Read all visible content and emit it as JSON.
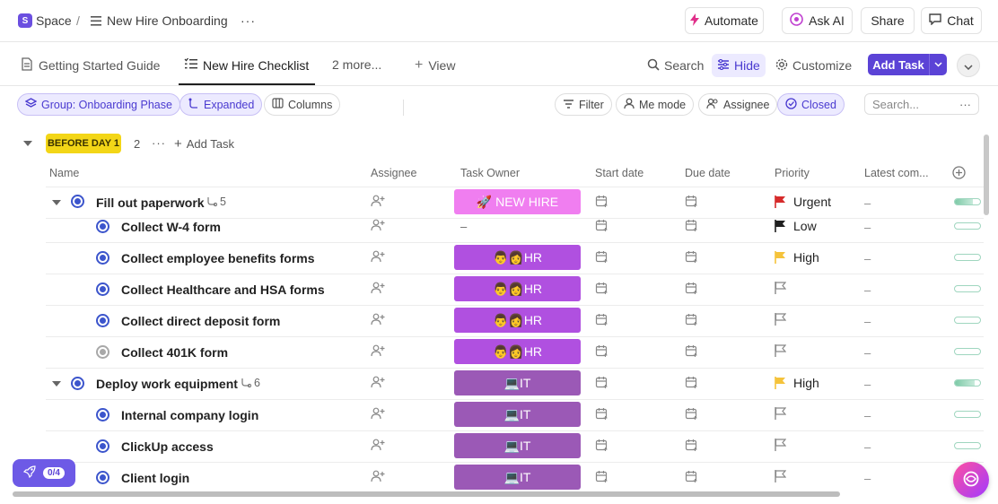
{
  "breadcrumb": {
    "space_badge": "S",
    "space": "Space",
    "separator": "/",
    "list": "New Hire Onboarding",
    "more": "···"
  },
  "topbar": {
    "automate": "Automate",
    "ask_ai": "Ask AI",
    "share": "Share",
    "chat": "Chat"
  },
  "tabs": [
    {
      "label": "Getting Started Guide"
    },
    {
      "label": "New Hire Checklist"
    },
    {
      "label": "2 more..."
    },
    {
      "label": "View"
    }
  ],
  "toolbar": {
    "search": "Search",
    "hide": "Hide",
    "customize": "Customize",
    "add_task": "Add Task"
  },
  "filters": {
    "group": "Group: Onboarding Phase",
    "expanded": "Expanded",
    "columns": "Columns",
    "filter": "Filter",
    "me_mode": "Me mode",
    "assignee": "Assignee",
    "closed": "Closed",
    "search_placeholder": "Search...",
    "search_more": "···"
  },
  "group": {
    "name": "BEFORE DAY 1",
    "count": "2",
    "more": "···",
    "add_task": "Add Task"
  },
  "columns": {
    "name": "Name",
    "assignee": "Assignee",
    "task_owner": "Task Owner",
    "start_date": "Start date",
    "due_date": "Due date",
    "priority": "Priority",
    "latest_comment": "Latest com..."
  },
  "tasks": [
    {
      "name": "Fill out paperwork",
      "subtasks": "5",
      "owner": "🚀 NEW HIRE",
      "priority": "Urgent",
      "latest": "–"
    },
    {
      "name": "Collect W-4 form",
      "owner": "–",
      "priority": "Low",
      "latest": "–"
    },
    {
      "name": "Collect employee benefits forms",
      "owner": "👨👩HR",
      "priority": "High",
      "latest": "–"
    },
    {
      "name": "Collect Healthcare and HSA forms",
      "owner": "👨👩HR",
      "latest": "–"
    },
    {
      "name": "Collect direct deposit form",
      "owner": "👨👩HR",
      "latest": "–"
    },
    {
      "name": "Collect 401K form",
      "owner": "👨👩HR",
      "latest": "–"
    },
    {
      "name": "Deploy work equipment",
      "subtasks": "6",
      "owner": "💻IT",
      "priority": "High",
      "latest": "–"
    },
    {
      "name": "Internal company login",
      "owner": "💻IT",
      "latest": "–"
    },
    {
      "name": "ClickUp access",
      "owner": "💻IT",
      "latest": "–"
    },
    {
      "name": "Client login",
      "owner": "💻IT",
      "latest": "–"
    }
  ],
  "progress_values": [
    0.7,
    0,
    0,
    0,
    0,
    0,
    0.8,
    0,
    0,
    0
  ],
  "onboarding": {
    "count": "0/4"
  },
  "colors": {
    "accent": "#5b43d6",
    "new_hire": "#f07ef0",
    "hr": "#b050e0",
    "it": "#9b59b6",
    "urgent": "#d62b2b",
    "high": "#f5c33b",
    "low": "#202020"
  }
}
